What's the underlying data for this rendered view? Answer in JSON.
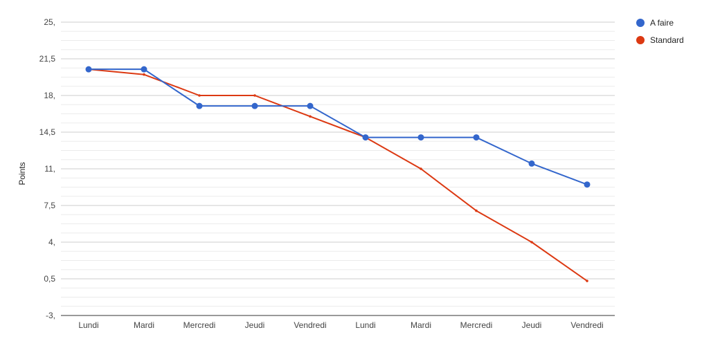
{
  "chart_data": {
    "type": "line",
    "title": "",
    "xlabel": "",
    "ylabel": "Points",
    "categories": [
      "Lundi",
      "Mardi",
      "Mercredi",
      "Jeudi",
      "Vendredi",
      "Lundi",
      "Mardi",
      "Mercredi",
      "Jeudi",
      "Vendredi"
    ],
    "ylim": [
      -3,
      25
    ],
    "y_ticks": [
      -3,
      0.5,
      4,
      7.5,
      11,
      14.5,
      18,
      21.5,
      25
    ],
    "y_tick_labels": [
      "-3,",
      "0,5",
      "4,",
      "7,5",
      "11,",
      "14,5",
      "18,",
      "21,5",
      "25,"
    ],
    "grid": true,
    "legend_position": "right",
    "series": [
      {
        "name": "A faire",
        "color": "#3366cc",
        "marker": "large-dot",
        "values": [
          20.5,
          20.5,
          17,
          17,
          17,
          14,
          14,
          14,
          11.5,
          9.5
        ]
      },
      {
        "name": "Standard",
        "color": "#dc3912",
        "marker": "small-dot",
        "values": [
          20.5,
          20,
          18,
          18,
          16,
          14,
          11,
          7,
          4,
          0.3
        ]
      }
    ]
  }
}
